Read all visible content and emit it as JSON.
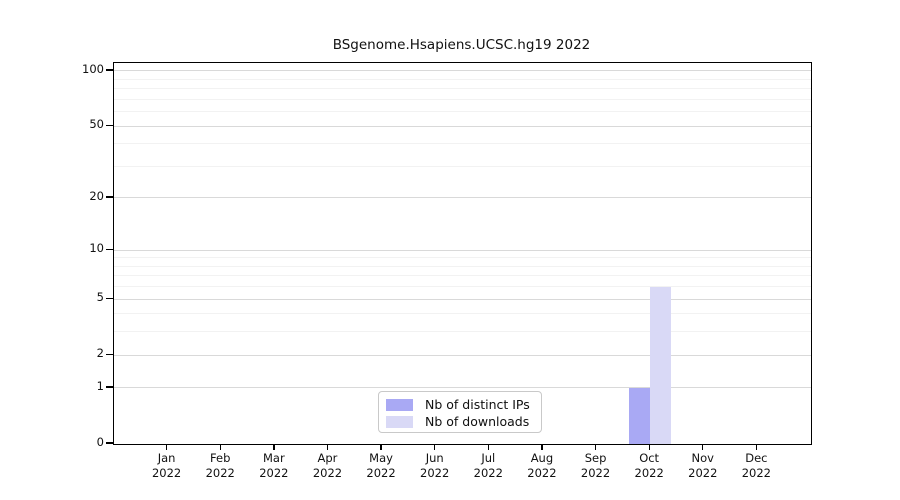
{
  "title": "BSgenome.Hsapiens.UCSC.hg19 2022",
  "chart_data": {
    "type": "bar",
    "title": "BSgenome.Hsapiens.UCSC.hg19 2022",
    "x_categories": [
      {
        "month": "Jan",
        "year": "2022"
      },
      {
        "month": "Feb",
        "year": "2022"
      },
      {
        "month": "Mar",
        "year": "2022"
      },
      {
        "month": "Apr",
        "year": "2022"
      },
      {
        "month": "May",
        "year": "2022"
      },
      {
        "month": "Jun",
        "year": "2022"
      },
      {
        "month": "Jul",
        "year": "2022"
      },
      {
        "month": "Aug",
        "year": "2022"
      },
      {
        "month": "Sep",
        "year": "2022"
      },
      {
        "month": "Oct",
        "year": "2022"
      },
      {
        "month": "Nov",
        "year": "2022"
      },
      {
        "month": "Dec",
        "year": "2022"
      }
    ],
    "series": [
      {
        "name": "Nb of distinct IPs",
        "color": "#a9a9f4",
        "values": [
          0,
          0,
          0,
          0,
          0,
          0,
          0,
          0,
          0,
          1,
          0,
          0
        ]
      },
      {
        "name": "Nb of downloads",
        "color": "#d9d9f6",
        "values": [
          0,
          0,
          0,
          0,
          0,
          0,
          0,
          0,
          0,
          6,
          0,
          0
        ]
      }
    ],
    "y_ticks": [
      0,
      1,
      2,
      5,
      10,
      20,
      50,
      100
    ],
    "y_major_gridlines": [
      1,
      2,
      5,
      10,
      20,
      50,
      100
    ],
    "y_minor_gridlines": [
      3,
      4,
      6,
      7,
      8,
      9,
      30,
      40,
      60,
      70,
      80,
      90
    ],
    "y_scale": "log10(1+value)",
    "ylim": [
      0,
      110
    ],
    "grid": true,
    "legend_position": "bottom-center"
  },
  "colors": {
    "distinct_ips": "#a9a9f4",
    "downloads": "#d9d9f6",
    "major_grid": "#d9d9d9",
    "minor_grid": "#f2f2f2",
    "axis": "#000000"
  }
}
